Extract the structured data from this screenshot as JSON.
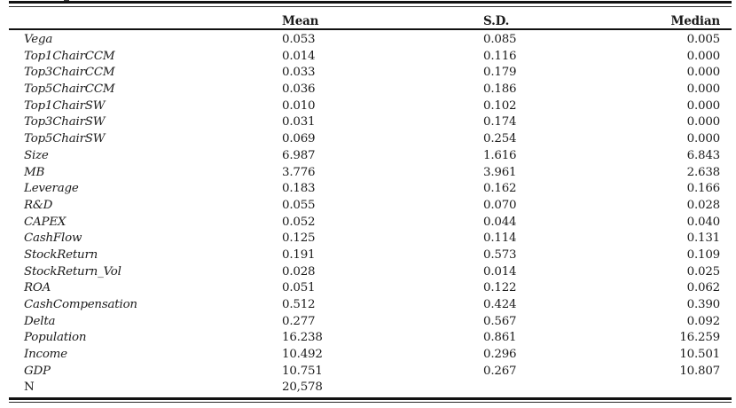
{
  "table": {
    "header": {
      "mean": "Mean",
      "sd": "S.D.",
      "median": "Median"
    },
    "rows": [
      {
        "label": "Vega",
        "mean": "0.053",
        "sd": "0.085",
        "median": "0.005",
        "italic": true
      },
      {
        "label": "Top1ChairCCM",
        "mean": "0.014",
        "sd": "0.116",
        "median": "0.000",
        "italic": true
      },
      {
        "label": "Top3ChairCCM",
        "mean": "0.033",
        "sd": "0.179",
        "median": "0.000",
        "italic": true
      },
      {
        "label": "Top5ChairCCM",
        "mean": "0.036",
        "sd": "0.186",
        "median": "0.000",
        "italic": true
      },
      {
        "label": "Top1ChairSW",
        "mean": "0.010",
        "sd": "0.102",
        "median": "0.000",
        "italic": true
      },
      {
        "label": "Top3ChairSW",
        "mean": "0.031",
        "sd": "0.174",
        "median": "0.000",
        "italic": true
      },
      {
        "label": "Top5ChairSW",
        "mean": "0.069",
        "sd": "0.254",
        "median": "0.000",
        "italic": true
      },
      {
        "label": "Size",
        "mean": "6.987",
        "sd": "1.616",
        "median": "6.843",
        "italic": true
      },
      {
        "label": "MB",
        "mean": "3.776",
        "sd": "3.961",
        "median": "2.638",
        "italic": true
      },
      {
        "label": "Leverage",
        "mean": "0.183",
        "sd": "0.162",
        "median": "0.166",
        "italic": true
      },
      {
        "label": "R&D",
        "mean": "0.055",
        "sd": "0.070",
        "median": "0.028",
        "italic": true
      },
      {
        "label": "CAPEX",
        "mean": "0.052",
        "sd": "0.044",
        "median": "0.040",
        "italic": true
      },
      {
        "label": "CashFlow",
        "mean": "0.125",
        "sd": "0.114",
        "median": "0.131",
        "italic": true
      },
      {
        "label": "StockReturn",
        "mean": "0.191",
        "sd": "0.573",
        "median": "0.109",
        "italic": true
      },
      {
        "label": "StockReturn_Vol",
        "mean": "0.028",
        "sd": "0.014",
        "median": "0.025",
        "italic": true
      },
      {
        "label": "ROA",
        "mean": "0.051",
        "sd": "0.122",
        "median": "0.062",
        "italic": true
      },
      {
        "label": "CashCompensation",
        "mean": "0.512",
        "sd": "0.424",
        "median": "0.390",
        "italic": true
      },
      {
        "label": "Delta",
        "mean": "0.277",
        "sd": "0.567",
        "median": "0.092",
        "italic": true
      },
      {
        "label": "Population",
        "mean": "16.238",
        "sd": "0.861",
        "median": "16.259",
        "italic": true
      },
      {
        "label": "Income",
        "mean": "10.492",
        "sd": "0.296",
        "median": "10.501",
        "italic": true
      },
      {
        "label": "GDP",
        "mean": "10.751",
        "sd": "0.267",
        "median": "10.807",
        "italic": true
      },
      {
        "label": "N",
        "mean": "20,578",
        "sd": "",
        "median": "",
        "italic": false
      }
    ],
    "rule_color": "#111111",
    "text_color": "#1b1b1b"
  }
}
